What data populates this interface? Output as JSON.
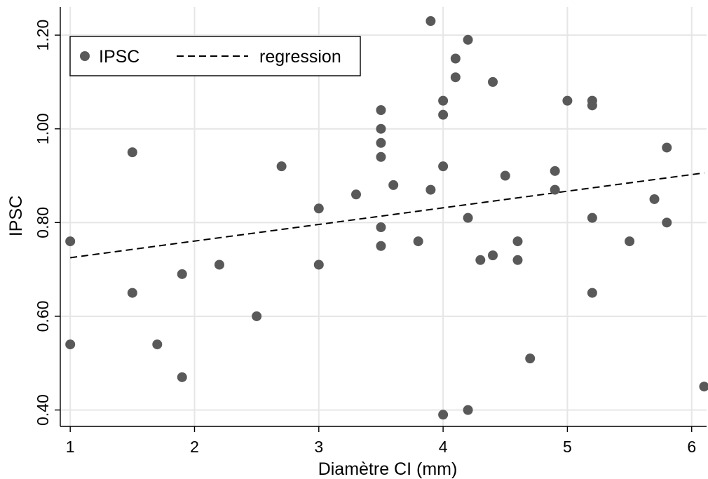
{
  "chart_data": {
    "type": "scatter",
    "xlabel": "Diamètre CI (mm)",
    "ylabel": "IPSC",
    "xlim": [
      0.92,
      6.12
    ],
    "ylim": [
      0.365,
      1.26
    ],
    "x_ticks": [
      1,
      2,
      3,
      4,
      5,
      6
    ],
    "x_tick_labels": [
      "1",
      "2",
      "3",
      "4",
      "5",
      "6"
    ],
    "y_ticks": [
      0.4,
      0.6,
      0.8,
      1.0,
      1.2
    ],
    "y_tick_labels": [
      "0.40",
      "0.60",
      "0.80",
      "1.00",
      "1.20"
    ],
    "grid": true,
    "legend_position": "top-left",
    "series": [
      {
        "name": "IPSC",
        "kind": "scatter",
        "color": "#595959",
        "points": [
          [
            1.0,
            0.76
          ],
          [
            1.0,
            0.54
          ],
          [
            1.5,
            0.95
          ],
          [
            1.5,
            0.65
          ],
          [
            1.7,
            0.54
          ],
          [
            1.9,
            0.69
          ],
          [
            1.9,
            0.47
          ],
          [
            2.2,
            0.71
          ],
          [
            2.5,
            0.6
          ],
          [
            2.7,
            0.92
          ],
          [
            3.0,
            0.83
          ],
          [
            3.0,
            0.71
          ],
          [
            3.3,
            0.86
          ],
          [
            3.5,
            1.04
          ],
          [
            3.5,
            1.0
          ],
          [
            3.5,
            0.97
          ],
          [
            3.5,
            0.94
          ],
          [
            3.5,
            0.79
          ],
          [
            3.5,
            0.75
          ],
          [
            3.6,
            0.88
          ],
          [
            3.8,
            0.76
          ],
          [
            3.9,
            1.23
          ],
          [
            3.9,
            0.87
          ],
          [
            4.0,
            1.06
          ],
          [
            4.0,
            1.03
          ],
          [
            4.0,
            0.92
          ],
          [
            4.0,
            0.39
          ],
          [
            4.1,
            1.15
          ],
          [
            4.1,
            1.11
          ],
          [
            4.2,
            1.19
          ],
          [
            4.2,
            0.81
          ],
          [
            4.2,
            0.4
          ],
          [
            4.3,
            0.72
          ],
          [
            4.4,
            1.1
          ],
          [
            4.4,
            0.73
          ],
          [
            4.5,
            0.9
          ],
          [
            4.6,
            0.76
          ],
          [
            4.6,
            0.72
          ],
          [
            4.7,
            0.51
          ],
          [
            4.9,
            0.91
          ],
          [
            4.9,
            0.87
          ],
          [
            5.0,
            1.06
          ],
          [
            5.2,
            1.06
          ],
          [
            5.2,
            1.05
          ],
          [
            5.2,
            0.81
          ],
          [
            5.2,
            0.65
          ],
          [
            5.5,
            0.76
          ],
          [
            5.7,
            0.85
          ],
          [
            5.8,
            0.96
          ],
          [
            5.8,
            0.8
          ],
          [
            6.1,
            0.45
          ]
        ]
      },
      {
        "name": "regression",
        "kind": "line",
        "style": "dashed",
        "color": "#000000",
        "points": [
          [
            1.0,
            0.725
          ],
          [
            6.1,
            0.906
          ]
        ]
      }
    ]
  }
}
